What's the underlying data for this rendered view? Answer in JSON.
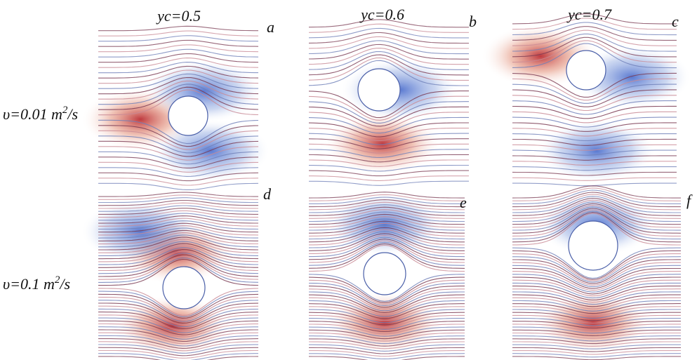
{
  "columns": [
    "yc=0.5",
    "yc=0.6",
    "yc=0.7"
  ],
  "rows": [
    {
      "prefix": "υ=0.01 m",
      "sup": "2",
      "suffix": "/s"
    },
    {
      "prefix": "υ=0.1 m",
      "sup": "2",
      "suffix": "/s"
    }
  ],
  "panels": [
    "a",
    "b",
    "c",
    "d",
    "e",
    "f"
  ]
}
